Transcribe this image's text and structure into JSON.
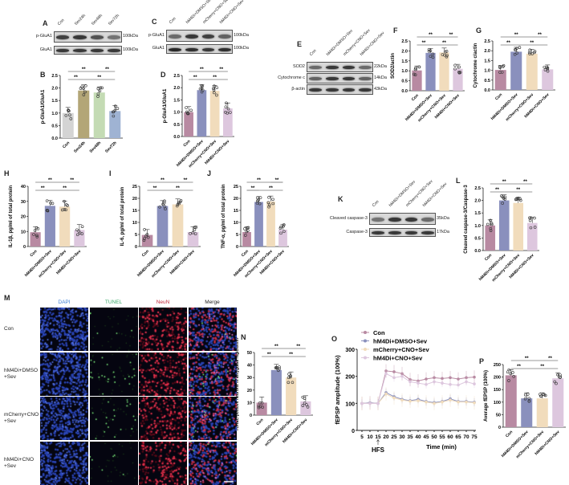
{
  "group_colors": {
    "Con": "#b88aa2",
    "hM4Di+DMSO+Sev": "#8a90bd",
    "mCherry+CNO+Sev": "#f1dcbc",
    "hM4Di+CNO+Sev": "#ddc7de"
  },
  "time_colors": [
    "#d4d4d4",
    "#b3a677",
    "#c4dbb4",
    "#9fb3d3"
  ],
  "blots": [
    {
      "id": "A",
      "label": "A",
      "lanes": [
        "Con",
        "Sev24h",
        "Sev48h",
        "Sev72h"
      ],
      "rows": [
        {
          "name": "p-GluA1",
          "kda": "100kDa",
          "intensity": [
            0.8,
            0.85,
            0.7,
            0.5
          ]
        },
        {
          "name": "GluA1",
          "kda": "100kDa",
          "intensity": [
            0.85,
            0.85,
            0.85,
            0.85
          ]
        }
      ]
    },
    {
      "id": "C",
      "label": "C",
      "lanes": [
        "Con",
        "hM4Di+DMSO+Sev",
        "mCherry+CNO+Sev",
        "hM4Di+CNO+Sev"
      ],
      "rows": [
        {
          "name": "p-GluA1",
          "kda": "100kDa",
          "intensity": [
            0.55,
            0.85,
            0.8,
            0.6
          ]
        },
        {
          "name": "GluA1",
          "kda": "100kDa",
          "intensity": [
            0.95,
            0.9,
            0.85,
            0.9
          ]
        }
      ]
    },
    {
      "id": "E",
      "label": "E",
      "lanes": [
        "Con",
        "hM4Di+DMSO+Sev",
        "mCherry+CNO+Sev",
        "hM4Di+CNO+Sev"
      ],
      "rows": [
        {
          "name": "SOD2",
          "kda": "22kDa",
          "intensity": [
            0.55,
            0.85,
            0.85,
            0.55
          ]
        },
        {
          "name": "Cytochrome c",
          "kda": "14kDa",
          "intensity": [
            0.6,
            0.85,
            0.85,
            0.6
          ]
        },
        {
          "name": "β-actin",
          "kda": "43kDa",
          "intensity": [
            0.85,
            0.85,
            0.85,
            0.85
          ]
        }
      ]
    },
    {
      "id": "K",
      "label": "K",
      "lanes": [
        "Con",
        "hM4Di+DMSO+Sev",
        "mCherry+CNO+Sev",
        "hM4Di+CNO+Sev"
      ],
      "rows": [
        {
          "name": "Cleaved caspase-3",
          "kda": "35kDa",
          "intensity": [
            0.5,
            0.85,
            0.85,
            0.55
          ]
        },
        {
          "name": "Caspase-3",
          "kda": "17kDa",
          "intensity": [
            0.85,
            0.85,
            0.85,
            0.85
          ]
        }
      ]
    }
  ],
  "chart_data": [
    {
      "id": "B",
      "label": "B",
      "type": "bar",
      "categories": [
        "Con",
        "Sev24h",
        "Sev48h",
        "Sev72h"
      ],
      "values": [
        1.0,
        1.9,
        1.82,
        1.08
      ],
      "ylabel": "p-GluA1/GluA1",
      "ylim": [
        0,
        2.5
      ],
      "yticks": [
        "0.0",
        "0.5",
        "1.0",
        "1.5",
        "2.0",
        "2.5"
      ],
      "significance": "**",
      "palette": "time"
    },
    {
      "id": "D",
      "label": "D",
      "type": "bar",
      "categories": [
        "Con",
        "hM4Di+DMSO+Sev",
        "mCherry+CNO+Sev",
        "hM4Di+CNO+Sev"
      ],
      "values": [
        1.0,
        1.9,
        1.87,
        1.15
      ],
      "ylabel": "p-GluA1/GluA1",
      "ylim": [
        0,
        2.5
      ],
      "yticks": [
        "0.0",
        "0.5",
        "1.0",
        "1.5",
        "2.0",
        "2.5"
      ],
      "significance": "**"
    },
    {
      "id": "F",
      "label": "F",
      "type": "bar",
      "categories": [
        "Con",
        "hM4Di+DMSO+Sev",
        "mCherry+CNO+Sev",
        "hM4Di+CNO+Sev"
      ],
      "values": [
        1.02,
        1.9,
        1.92,
        1.1
      ],
      "ylabel": "SOD2/actin",
      "ylim": [
        0,
        2.5
      ],
      "yticks": [
        "0.0",
        "0.5",
        "1.0",
        "1.5",
        "2.0",
        "2.5"
      ],
      "significance": "**"
    },
    {
      "id": "G",
      "label": "G",
      "type": "bar",
      "categories": [
        "Con",
        "hM4Di+DMSO+Sev",
        "mCherry+CNO+Sev",
        "hM4Di+CNO+Sev"
      ],
      "values": [
        1.02,
        1.95,
        1.85,
        1.05
      ],
      "ylabel": "Cytochrome c/actin",
      "ylim": [
        0,
        2.5
      ],
      "yticks": [
        "0.0",
        "0.5",
        "1.0",
        "1.5",
        "2.0",
        "2.5"
      ],
      "significance": "**"
    },
    {
      "id": "H",
      "label": "H",
      "type": "bar",
      "categories": [
        "Con",
        "hM4Di+DMSO+Sev",
        "mCherry+CNO+Sev",
        "hM4Di+CNO+Sev"
      ],
      "values": [
        9.5,
        27,
        26.5,
        11
      ],
      "ylabel": "IL-1β, pg/ml of total protein",
      "ylim": [
        0,
        40
      ],
      "yticks": [
        "0",
        "10",
        "20",
        "30",
        "40"
      ],
      "significance": "**"
    },
    {
      "id": "I",
      "label": "I",
      "type": "bar",
      "categories": [
        "Con",
        "hM4Di+DMSO+Sev",
        "mCherry+CNO+Sev",
        "hM4Di+CNO+Sev"
      ],
      "values": [
        4.8,
        16.8,
        17.5,
        6
      ],
      "ylabel": "IL-6, pg/ml of total protein",
      "ylim": [
        0,
        25
      ],
      "yticks": [
        "0",
        "5",
        "10",
        "15",
        "20",
        "25"
      ],
      "significance": "**"
    },
    {
      "id": "J",
      "label": "J",
      "type": "bar",
      "categories": [
        "Con",
        "hM4Di+DMSO+Sev",
        "mCherry+CNO+Sev",
        "hM4Di+CNO+Sev"
      ],
      "values": [
        6,
        18.5,
        18.7,
        7
      ],
      "ylabel": "TNF-α, pg/ml of total protein",
      "ylim": [
        0,
        25
      ],
      "yticks": [
        "0",
        "5",
        "10",
        "15",
        "20",
        "25"
      ],
      "significance": "**"
    },
    {
      "id": "L",
      "label": "L",
      "type": "bar",
      "categories": [
        "Con",
        "hM4Di+DMSO+Sev",
        "mCherry+CNO+Sev",
        "hM4Di+CNO+Sev"
      ],
      "values": [
        1.0,
        2.0,
        1.9,
        1.1
      ],
      "ylabel": "Cleaved caspase-3/Caspase-3",
      "ylim": [
        0,
        2.5
      ],
      "yticks": [
        "0.0",
        "0.5",
        "1.0",
        "1.5",
        "2.0",
        "2.5"
      ],
      "significance": "**"
    },
    {
      "id": "N",
      "label": "N",
      "type": "bar",
      "categories": [
        "Con",
        "hM4Di+DMSO+Sev",
        "mCherry+CNO+Sev",
        "hM4Di+CNO+Sev"
      ],
      "values": [
        10,
        36,
        30,
        11
      ],
      "ylabel": "TUNEL-positive neurons in amygdala region/mm²",
      "ylim": [
        0,
        50
      ],
      "yticks": [
        "0",
        "10",
        "20",
        "30",
        "40",
        "50"
      ],
      "significance": "**"
    },
    {
      "id": "P",
      "label": "P",
      "type": "bar",
      "categories": [
        "Con",
        "hM4Di+DMSO+Sev",
        "mCherry+CNO+Sev",
        "hM4Di+CNO+Sev"
      ],
      "values": [
        207,
        115,
        115,
        195
      ],
      "ylabel": "Average fEPSP (100%)",
      "ylim": [
        0,
        250
      ],
      "yticks": [
        "0",
        "50",
        "100",
        "150",
        "200",
        "250"
      ],
      "significance": "**"
    },
    {
      "id": "O",
      "label": "O",
      "type": "line",
      "x": [
        5,
        10,
        15,
        20,
        25,
        30,
        35,
        40,
        45,
        50,
        55,
        60,
        65,
        70,
        75
      ],
      "xlabel": "Time (min)",
      "ylabel": "fEPSP amplitude (100%)",
      "ylim": [
        0,
        300
      ],
      "yticks": [
        "0",
        "100",
        "200",
        "300"
      ],
      "annotation": "HFS",
      "annotation_x": 15,
      "legend_position": "top-left",
      "series": [
        {
          "name": "Con",
          "values": [
            100,
            102,
            100,
            220,
            217,
            210,
            188,
            183,
            190,
            195,
            192,
            195,
            190,
            195,
            197
          ]
        },
        {
          "name": "hM4Di+DMSO+Sev",
          "values": [
            100,
            102,
            100,
            140,
            125,
            115,
            110,
            115,
            107,
            103,
            107,
            117,
            107,
            107,
            104
          ]
        },
        {
          "name": "mCherry+CNO+Sev",
          "values": [
            100,
            100,
            100,
            135,
            120,
            112,
            108,
            110,
            105,
            100,
            105,
            112,
            105,
            105,
            102
          ]
        },
        {
          "name": "hM4Di+CNO+Sev",
          "values": [
            100,
            100,
            100,
            210,
            195,
            200,
            180,
            175,
            170,
            180,
            175,
            170,
            168,
            180,
            172
          ]
        }
      ]
    }
  ],
  "microscopy": {
    "label": "M",
    "columns": [
      {
        "name": "DAPI",
        "color": "#3d7fd6"
      },
      {
        "name": "TUNEL",
        "color": "#3aa86a"
      },
      {
        "name": "NeuN",
        "color": "#c2283a"
      },
      {
        "name": "Merge",
        "color": "#222222"
      }
    ],
    "rows": [
      "Con",
      "hM4Di+DMSO\n+Sev",
      "mCherry+CNO\n+Sev",
      "hM4Di+CNO\n+Sev"
    ],
    "tunel_density": [
      0.02,
      0.12,
      0.1,
      0.03
    ]
  }
}
